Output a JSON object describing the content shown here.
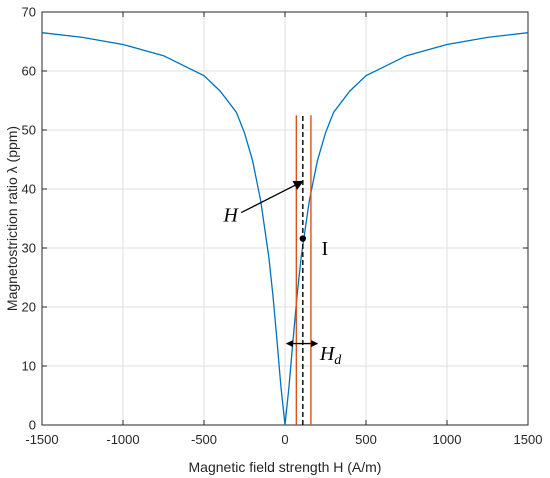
{
  "chart_data": {
    "type": "line",
    "xlabel": "Magnetic field strength H (A/m)",
    "ylabel": "Magnetostriction ratio λ (ppm)",
    "xlim": [
      -1500,
      1500
    ],
    "ylim": [
      0,
      70
    ],
    "xticks": [
      -1500,
      -1000,
      -500,
      0,
      500,
      1000,
      1500
    ],
    "yticks": [
      0,
      10,
      20,
      30,
      40,
      50,
      60,
      70
    ],
    "grid": true,
    "series": [
      {
        "color": "#0072BD",
        "x": [
          -1500,
          -1250,
          -1000,
          -750,
          -500,
          -400,
          -300,
          -250,
          -200,
          -150,
          -100,
          -75,
          -50,
          -25,
          0,
          25,
          50,
          75,
          100,
          150,
          200,
          250,
          300,
          400,
          500,
          750,
          1000,
          1250,
          1500
        ],
        "y": [
          66.5,
          65.7,
          64.5,
          62.6,
          59.2,
          56.6,
          53.0,
          49.5,
          44.8,
          38.0,
          28.5,
          22.0,
          14.5,
          6.5,
          0,
          6.5,
          14.5,
          22.0,
          28.5,
          38.0,
          44.8,
          49.5,
          53.0,
          56.6,
          59.2,
          62.6,
          64.5,
          65.7,
          66.5
        ]
      }
    ],
    "vertical_lines": [
      {
        "x": 70,
        "color": "#D95319",
        "style": "solid",
        "y_top": 52.5
      },
      {
        "x": 110,
        "color": "#000000",
        "style": "dashed",
        "y_top": 52.5
      },
      {
        "x": 160,
        "color": "#D95319",
        "style": "solid",
        "y_top": 52.5
      }
    ],
    "annotations": [
      {
        "text": "H",
        "style": "italic",
        "x": -380,
        "y": 34.5
      },
      {
        "text": "I",
        "style": "upright",
        "x": 225,
        "y": 28.8
      },
      {
        "text": "H",
        "subscript": "d",
        "style": "italic",
        "x": 215,
        "y": 11.0
      }
    ],
    "arrow_H": {
      "from_x": -270,
      "from_y": 36.0,
      "to_x": 110,
      "to_y": 41.3
    },
    "operating_point": {
      "x": 110,
      "y": 31.6
    },
    "arrow_Hd": {
      "from_x": 10,
      "to_x": 200,
      "y": 13.8
    }
  }
}
